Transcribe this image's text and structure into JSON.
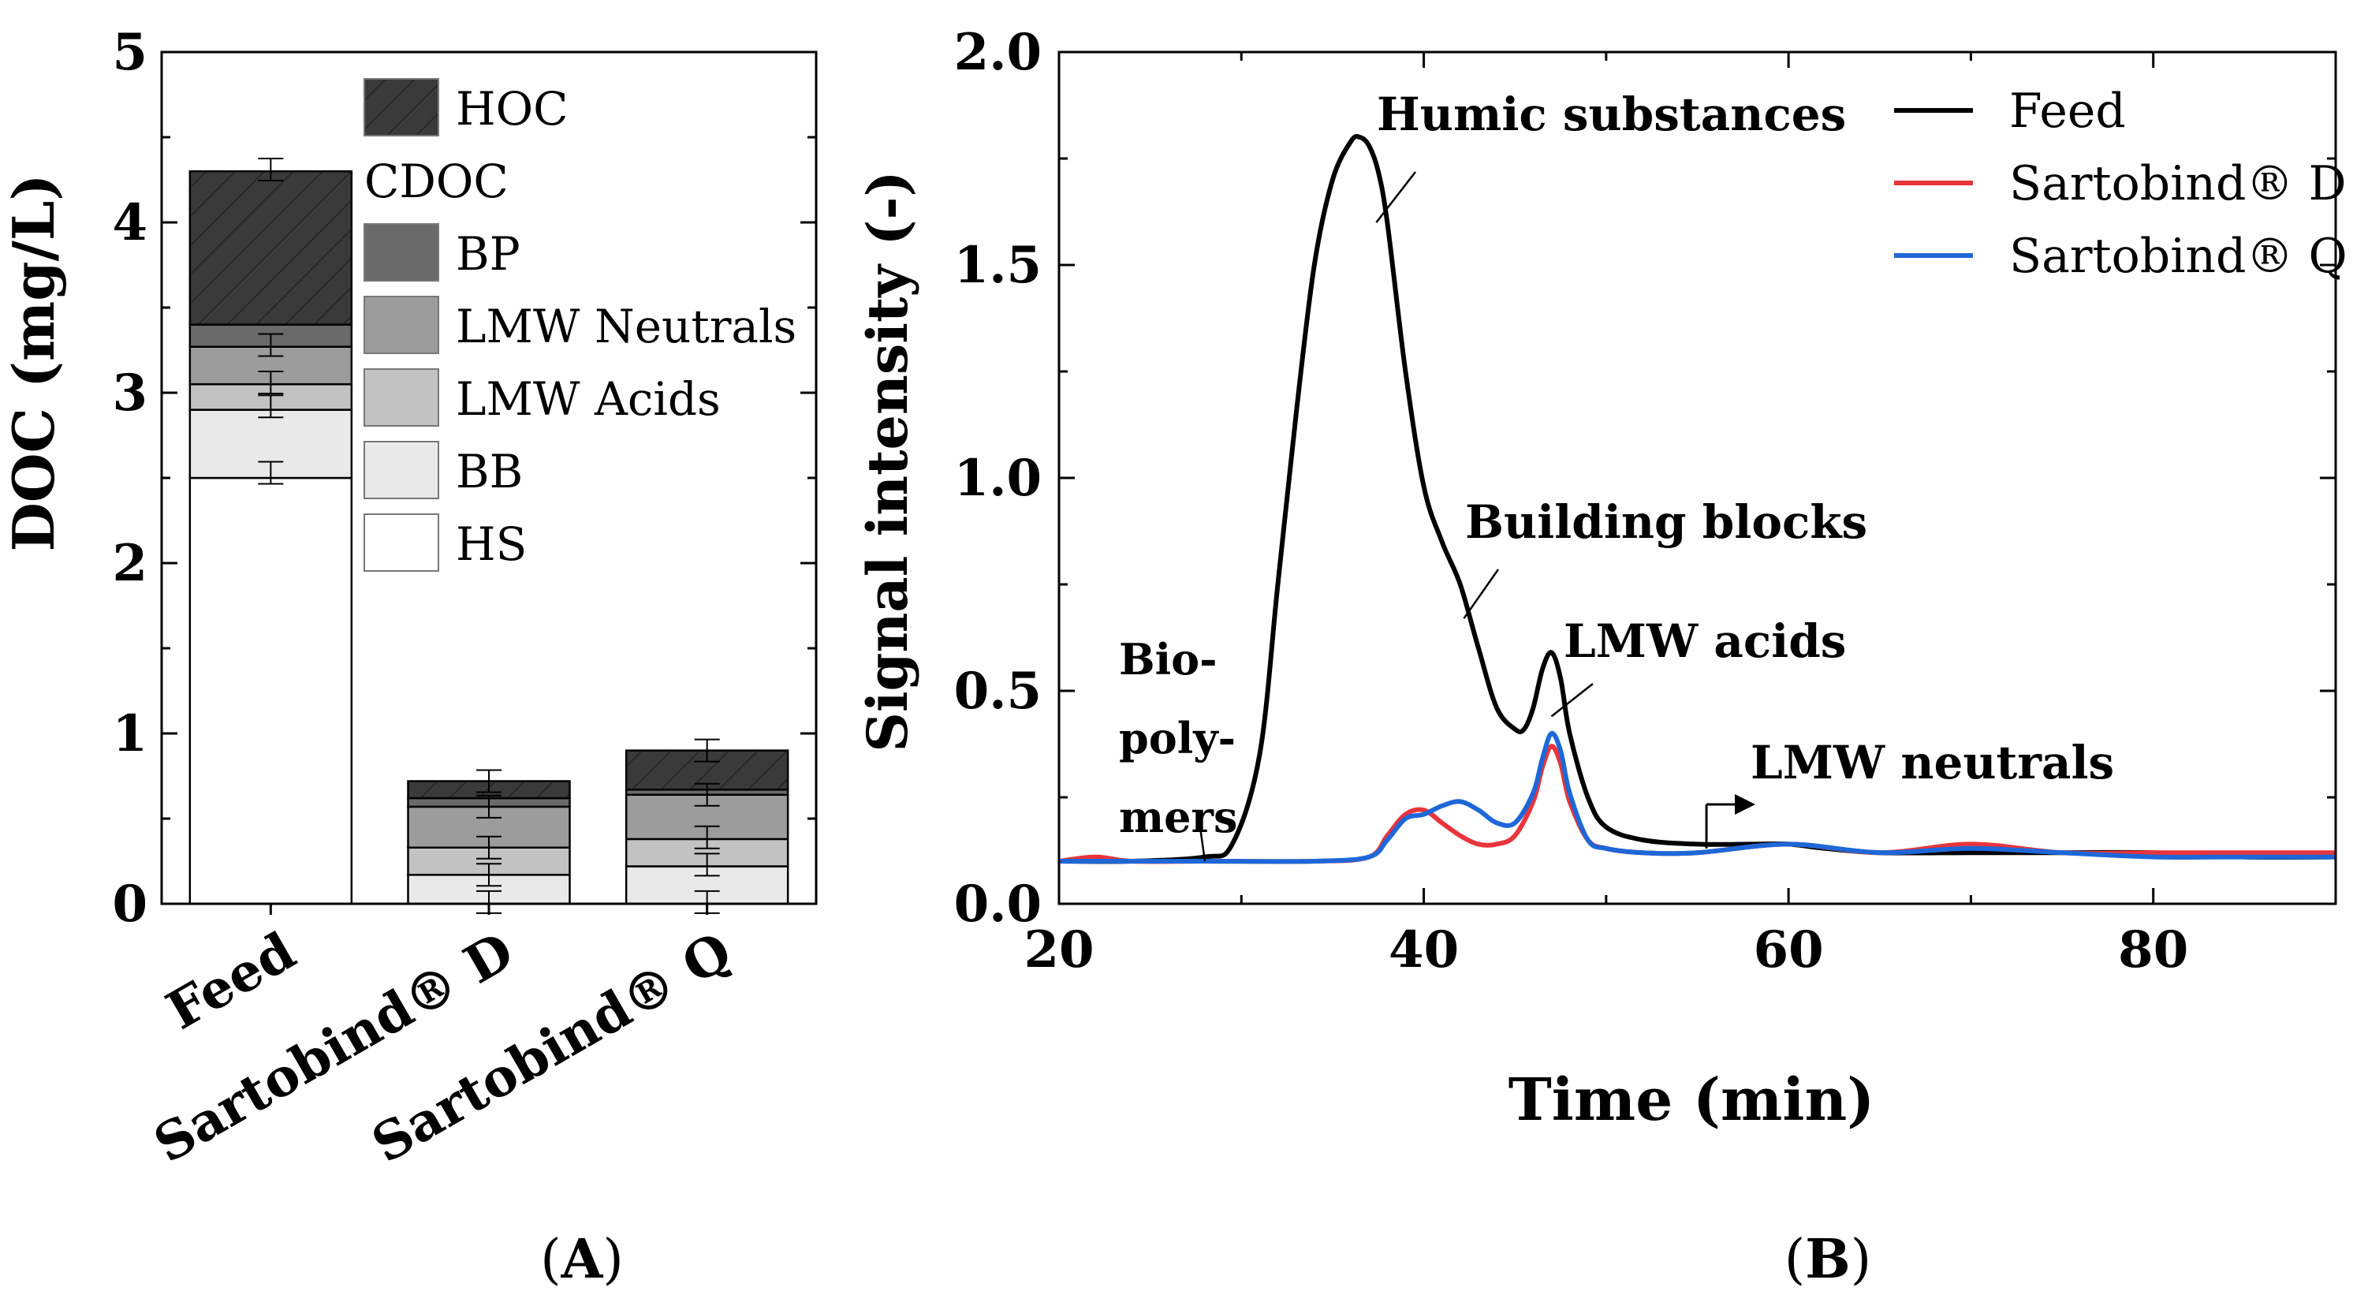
{
  "chart_data": [
    {
      "panel": "(A)",
      "panel_letter": "A",
      "type": "bar",
      "stacked": true,
      "ylabel": "DOC (mg/L)",
      "xlabel": "",
      "ylim": [
        0,
        5
      ],
      "yticks": [
        0,
        1,
        2,
        3,
        4,
        5
      ],
      "categories": [
        "Feed",
        "Sartobind® D",
        "Sartobind® Q"
      ],
      "series": [
        {
          "name": "HS",
          "values": [
            2.5,
            0.0,
            0.0
          ],
          "color": "#ffffff",
          "hatch": false
        },
        {
          "name": "BB",
          "values": [
            0.4,
            0.17,
            0.22
          ],
          "color": "#e9e9e9",
          "hatch": false
        },
        {
          "name": "LMW Acids",
          "values": [
            0.15,
            0.16,
            0.16
          ],
          "color": "#c2c2c2",
          "hatch": false
        },
        {
          "name": "LMW Neutrals",
          "values": [
            0.22,
            0.24,
            0.26
          ],
          "color": "#9c9c9c",
          "hatch": false
        },
        {
          "name": "BP",
          "values": [
            0.13,
            0.05,
            0.03
          ],
          "color": "#6a6a6a",
          "hatch": false
        },
        {
          "name": "HOC",
          "values": [
            0.9,
            0.1,
            0.23
          ],
          "color": "#3a3a3a",
          "hatch": true
        }
      ],
      "error_bars": [
        [
          2.53,
          2.92,
          3.06,
          3.28,
          4.31
        ],
        [
          0.01,
          0.17,
          0.33,
          0.57,
          0.72
        ],
        [
          0.01,
          0.23,
          0.39,
          0.64,
          0.9
        ]
      ],
      "legend_group_label": "CDOC",
      "legend_order": [
        "HOC",
        "CDOC",
        "BP",
        "LMW Neutrals",
        "LMW Acids",
        "BB",
        "HS"
      ],
      "legend_position": "top-right"
    },
    {
      "panel": "(B)",
      "panel_letter": "B",
      "type": "line",
      "xlabel": "Time (min)",
      "ylabel": "Signal intensity (-)",
      "xlim": [
        20,
        90
      ],
      "ylim": [
        0,
        2.0
      ],
      "xticks": [
        20,
        40,
        60,
        80
      ],
      "yticks": [
        "0.0",
        "0.5",
        "1.0",
        "1.5",
        "2.0"
      ],
      "legend_position": "top-right",
      "series": [
        {
          "name": "Feed",
          "color": "#000000",
          "x": [
            20,
            24,
            28,
            29.5,
            31,
            32,
            33,
            34,
            35,
            36,
            36.5,
            37,
            37.5,
            38,
            39,
            40,
            41,
            42,
            43,
            44,
            45,
            45.5,
            46,
            46.5,
            47,
            47.5,
            48,
            49,
            50,
            52,
            55,
            58,
            60,
            62,
            65,
            70,
            75,
            80,
            85,
            90
          ],
          "y": [
            0.1,
            0.1,
            0.11,
            0.14,
            0.35,
            0.75,
            1.15,
            1.5,
            1.7,
            1.79,
            1.8,
            1.78,
            1.72,
            1.6,
            1.25,
            0.98,
            0.85,
            0.75,
            0.6,
            0.46,
            0.41,
            0.41,
            0.46,
            0.55,
            0.59,
            0.53,
            0.4,
            0.25,
            0.18,
            0.15,
            0.14,
            0.14,
            0.14,
            0.13,
            0.12,
            0.12,
            0.12,
            0.12,
            0.11,
            0.11
          ]
        },
        {
          "name": "Sartobind® D",
          "color": "#e8353b",
          "x": [
            20,
            22,
            24,
            28,
            34,
            37,
            38,
            39,
            40,
            41,
            42,
            43,
            44,
            45,
            46,
            46.5,
            47,
            47.5,
            48,
            49,
            50,
            52,
            55,
            60,
            65,
            70,
            75,
            80,
            85,
            90
          ],
          "y": [
            0.1,
            0.11,
            0.1,
            0.1,
            0.1,
            0.11,
            0.16,
            0.21,
            0.22,
            0.19,
            0.16,
            0.14,
            0.14,
            0.16,
            0.24,
            0.32,
            0.37,
            0.33,
            0.24,
            0.15,
            0.13,
            0.12,
            0.12,
            0.14,
            0.12,
            0.14,
            0.12,
            0.12,
            0.12,
            0.12
          ]
        },
        {
          "name": "Sartobind® Q",
          "color": "#1e67d8",
          "x": [
            20,
            24,
            28,
            34,
            37,
            38,
            39,
            40,
            41,
            42,
            43,
            44,
            45,
            46,
            46.5,
            47,
            47.5,
            48,
            49,
            50,
            52,
            55,
            60,
            65,
            70,
            75,
            80,
            85,
            90
          ],
          "y": [
            0.1,
            0.1,
            0.1,
            0.1,
            0.11,
            0.15,
            0.2,
            0.21,
            0.23,
            0.24,
            0.22,
            0.19,
            0.19,
            0.26,
            0.34,
            0.4,
            0.36,
            0.26,
            0.15,
            0.13,
            0.12,
            0.12,
            0.14,
            0.12,
            0.13,
            0.12,
            0.11,
            0.11,
            0.11
          ]
        }
      ],
      "annotations": [
        {
          "text": "Humic substances",
          "x": 37.4,
          "y": 1.6
        },
        {
          "text": "Building blocks",
          "x": 42.2,
          "y": 0.67
        },
        {
          "text": "LMW acids",
          "x": 47,
          "y": 0.44
        },
        {
          "text": "Bio-",
          "x": 28,
          "y": 0.1
        },
        {
          "text": "poly-",
          "x": 28,
          "y": 0.1
        },
        {
          "text": "mers",
          "x": 28,
          "y": 0.1
        },
        {
          "text": "LMW neutrals",
          "x": 55.5,
          "y": 0.13
        }
      ]
    }
  ]
}
